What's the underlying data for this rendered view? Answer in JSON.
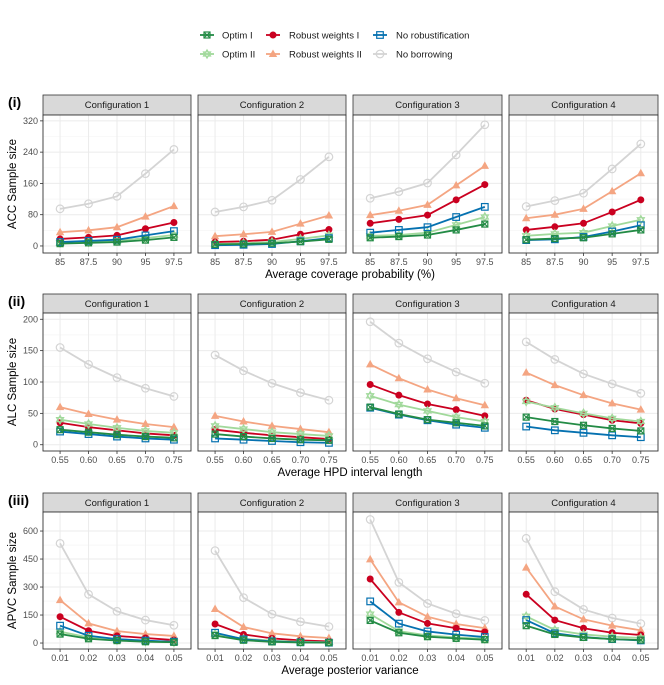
{
  "legend": {
    "position": "top",
    "items": [
      {
        "key": "optim1",
        "label": "Optim I",
        "color": "#238b45",
        "shape": "square-cross"
      },
      {
        "key": "rw1",
        "label": "Robust weights I",
        "color": "#ca0020",
        "shape": "filled-circle"
      },
      {
        "key": "norob",
        "label": "No robustification",
        "color": "#0571b0",
        "shape": "open-square"
      },
      {
        "key": "optim2",
        "label": "Optim II",
        "color": "#a1d99b",
        "shape": "star-of-david"
      },
      {
        "key": "rw2",
        "label": "Robust weights II",
        "color": "#f4a582",
        "shape": "filled-triangle"
      },
      {
        "key": "nb",
        "label": "No borrowing",
        "color": "#d4d4d4",
        "shape": "open-circle"
      }
    ]
  },
  "chart_data": [
    {
      "type": "line",
      "row_label": "(i)",
      "ylabel": "ACC Sample size",
      "xlabel": "Average coverage probability (%)",
      "categories": [
        "85",
        "87.5",
        "90",
        "95",
        "97.5"
      ],
      "yticks": [
        0,
        80,
        160,
        240,
        320
      ],
      "ylim": [
        -18,
        335
      ],
      "grid": true,
      "facets": [
        {
          "title": "Configuration 1",
          "series": {
            "nb": [
              95,
              108,
              127,
              185,
              247
            ],
            "rw2": [
              35,
              40,
              48,
              75,
              102
            ],
            "rw1": [
              18,
              22,
              27,
              44,
              60
            ],
            "optim2": [
              8,
              10,
              13,
              20,
              28
            ],
            "norob": [
              10,
              13,
              16,
              27,
              38
            ],
            "optim1": [
              6,
              8,
              10,
              15,
              22
            ]
          }
        },
        {
          "title": "Configuration 2",
          "series": {
            "nb": [
              87,
              100,
              117,
              170,
              228
            ],
            "rw2": [
              25,
              30,
              36,
              57,
              78
            ],
            "rw1": [
              10,
              12,
              16,
              30,
              42
            ],
            "optim2": [
              5,
              7,
              10,
              18,
              27
            ],
            "norob": [
              2,
              3,
              5,
              12,
              20
            ],
            "optim1": [
              4,
              5,
              7,
              11,
              17
            ]
          }
        },
        {
          "title": "Configuration 3",
          "series": {
            "nb": [
              122,
              139,
              161,
              233,
              310
            ],
            "rw2": [
              79,
              90,
              105,
              155,
              205
            ],
            "rw1": [
              58,
              68,
              79,
              118,
              157
            ],
            "optim2": [
              26,
              28,
              34,
              54,
              74
            ],
            "norob": [
              34,
              41,
              48,
              74,
              100
            ],
            "optim1": [
              21,
              24,
              28,
              41,
              56
            ]
          }
        },
        {
          "title": "Configuration 4",
          "series": {
            "nb": [
              101,
              116,
              135,
              197,
              261
            ],
            "rw2": [
              71,
              80,
              95,
              140,
              186
            ],
            "rw1": [
              41,
              49,
              58,
              87,
              118
            ],
            "optim2": [
              26,
              31,
              34,
              51,
              67
            ],
            "norob": [
              15,
              17,
              23,
              37,
              53
            ],
            "optim1": [
              16,
              19,
              21,
              31,
              41
            ]
          }
        }
      ]
    },
    {
      "type": "line",
      "row_label": "(ii)",
      "ylabel": "ALC Sample size",
      "xlabel": "Average HPD interval length",
      "categories": [
        "0.55",
        "0.60",
        "0.65",
        "0.70",
        "0.75"
      ],
      "yticks": [
        0,
        50,
        100,
        150,
        200
      ],
      "ylim": [
        -10,
        210
      ],
      "grid": true,
      "facets": [
        {
          "title": "Configuration 1",
          "series": {
            "nb": [
              155,
              128,
              107,
              90,
              77
            ],
            "rw2": [
              60,
              49,
              40,
              33,
              28
            ],
            "rw1": [
              35,
              28,
              23,
              18,
              15
            ],
            "optim2": [
              40,
              33,
              27,
              22,
              19
            ],
            "norob": [
              21,
              17,
              13,
              10,
              8
            ],
            "optim1": [
              24,
              20,
              16,
              13,
              11
            ]
          }
        },
        {
          "title": "Configuration 2",
          "series": {
            "nb": [
              143,
              118,
              98,
              83,
              71
            ],
            "rw2": [
              46,
              37,
              30,
              25,
              20
            ],
            "rw1": [
              24,
              19,
              15,
              12,
              9
            ],
            "optim2": [
              30,
              25,
              20,
              17,
              14
            ],
            "norob": [
              10,
              8,
              6,
              4,
              3
            ],
            "optim1": [
              17,
              13,
              10,
              8,
              7
            ]
          }
        },
        {
          "title": "Configuration 3",
          "series": {
            "nb": [
              196,
              162,
              137,
              116,
              98
            ],
            "rw2": [
              128,
              106,
              88,
              74,
              63
            ],
            "rw1": [
              96,
              79,
              65,
              56,
              46
            ],
            "optim2": [
              78,
              64,
              54,
              44,
              37
            ],
            "norob": [
              59,
              48,
              39,
              32,
              27
            ],
            "optim1": [
              60,
              49,
              40,
              35,
              30
            ]
          }
        },
        {
          "title": "Configuration 4",
          "series": {
            "nb": [
              164,
              136,
              113,
              97,
              82
            ],
            "rw2": [
              115,
              95,
              79,
              66,
              56
            ],
            "rw1": [
              71,
              57,
              48,
              39,
              34
            ],
            "optim2": [
              69,
              59,
              50,
              42,
              37
            ],
            "norob": [
              29,
              23,
              19,
              15,
              12
            ],
            "optim1": [
              44,
              37,
              31,
              26,
              22
            ]
          }
        }
      ]
    },
    {
      "type": "line",
      "row_label": "(iii)",
      "ylabel": "APVC Sample size",
      "xlabel": "Average posterior variance",
      "categories": [
        "0.01",
        "0.02",
        "0.03",
        "0.04",
        "0.05"
      ],
      "yticks": [
        0,
        150,
        300,
        450,
        600
      ],
      "ylim": [
        -32,
        702
      ],
      "grid": true,
      "facets": [
        {
          "title": "Configuration 1",
          "series": {
            "nb": [
              534,
              261,
              170,
              123,
              95
            ],
            "rw2": [
              230,
              105,
              64,
              48,
              38
            ],
            "rw1": [
              141,
              66,
              38,
              27,
              16
            ],
            "optim2": [
              61,
              30,
              16,
              9,
              5
            ],
            "norob": [
              93,
              39,
              21,
              13,
              7
            ],
            "optim1": [
              48,
              23,
              13,
              7,
              4
            ]
          }
        },
        {
          "title": "Configuration 2",
          "series": {
            "nb": [
              495,
              243,
              155,
              114,
              88
            ],
            "rw2": [
              182,
              86,
              52,
              36,
              27
            ],
            "rw1": [
              102,
              46,
              25,
              14,
              9
            ],
            "optim2": [
              48,
              23,
              13,
              7,
              4
            ],
            "norob": [
              55,
              20,
              9,
              4,
              2
            ],
            "optim1": [
              40,
              15,
              6,
              3,
              2
            ]
          }
        },
        {
          "title": "Configuration 3",
          "series": {
            "nb": [
              662,
              325,
              212,
              157,
              121
            ],
            "rw2": [
              448,
              218,
              141,
              102,
              80
            ],
            "rw1": [
              343,
              164,
              105,
              79,
              59
            ],
            "optim2": [
              155,
              64,
              41,
              30,
              23
            ],
            "norob": [
              223,
              104,
              62,
              45,
              32
            ],
            "optim1": [
              121,
              55,
              34,
              25,
              18
            ]
          }
        },
        {
          "title": "Configuration 4",
          "series": {
            "nb": [
              561,
              275,
              180,
              134,
              104
            ],
            "rw2": [
              404,
              196,
              127,
              93,
              68
            ],
            "rw1": [
              261,
              123,
              79,
              55,
              43
            ],
            "optim2": [
              143,
              70,
              46,
              34,
              27
            ],
            "norob": [
              123,
              52,
              32,
              21,
              14
            ],
            "optim1": [
              93,
              46,
              30,
              21,
              16
            ]
          }
        }
      ]
    }
  ]
}
